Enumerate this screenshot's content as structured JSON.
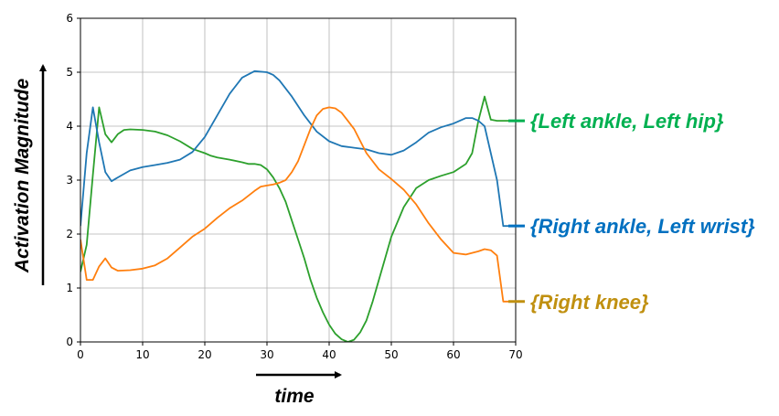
{
  "chart_data": {
    "type": "line",
    "xlabel": "time",
    "ylabel": "Activation Magnitude",
    "xlim": [
      0,
      70
    ],
    "ylim": [
      0,
      6
    ],
    "xticks": [
      0,
      10,
      20,
      30,
      40,
      50,
      60,
      70
    ],
    "yticks": [
      0,
      1,
      2,
      3,
      4,
      5,
      6
    ],
    "grid": true,
    "legend": "right-side labels",
    "series": [
      {
        "name": "{Left ankle, Left hip}",
        "color": "#2ca02c",
        "label_color": "#00b050",
        "x": [
          0,
          1,
          2,
          3,
          4,
          5,
          6,
          7,
          8,
          10,
          12,
          14,
          16,
          18,
          20,
          21,
          22,
          24,
          26,
          27,
          28,
          29,
          30,
          31,
          32,
          33,
          34,
          35,
          36,
          37,
          38,
          39,
          40,
          41,
          42,
          43,
          44,
          45,
          46,
          47,
          48,
          49,
          50,
          52,
          54,
          56,
          58,
          60,
          62,
          63,
          64,
          65,
          66,
          67,
          68,
          69,
          70
        ],
        "y": [
          1.3,
          1.8,
          3.1,
          4.35,
          3.85,
          3.7,
          3.85,
          3.93,
          3.94,
          3.93,
          3.9,
          3.83,
          3.72,
          3.58,
          3.5,
          3.45,
          3.42,
          3.38,
          3.33,
          3.3,
          3.3,
          3.28,
          3.2,
          3.05,
          2.85,
          2.6,
          2.25,
          1.9,
          1.55,
          1.15,
          0.82,
          0.55,
          0.32,
          0.15,
          0.05,
          0.0,
          0.04,
          0.18,
          0.4,
          0.75,
          1.15,
          1.55,
          1.95,
          2.5,
          2.85,
          3.0,
          3.08,
          3.15,
          3.3,
          3.5,
          4.1,
          4.55,
          4.12,
          4.1,
          4.1,
          4.1,
          4.1
        ]
      },
      {
        "name": "{Right ankle, Left wrist}",
        "color": "#1f77b4",
        "label_color": "#0070c0",
        "x": [
          0,
          1,
          2,
          3,
          4,
          5,
          6,
          8,
          10,
          12,
          14,
          16,
          18,
          20,
          22,
          24,
          26,
          28,
          30,
          31,
          32,
          34,
          36,
          38,
          40,
          42,
          44,
          46,
          48,
          50,
          52,
          54,
          56,
          58,
          60,
          62,
          63,
          64,
          65,
          66,
          67,
          68,
          69,
          70
        ],
        "y": [
          2.15,
          3.5,
          4.35,
          3.7,
          3.15,
          2.98,
          3.05,
          3.18,
          3.24,
          3.28,
          3.32,
          3.38,
          3.52,
          3.8,
          4.2,
          4.6,
          4.9,
          5.02,
          5.0,
          4.95,
          4.85,
          4.55,
          4.2,
          3.9,
          3.72,
          3.63,
          3.6,
          3.57,
          3.5,
          3.47,
          3.55,
          3.7,
          3.88,
          3.98,
          4.05,
          4.15,
          4.15,
          4.1,
          4.0,
          3.5,
          3.0,
          2.15,
          2.15,
          2.15
        ]
      },
      {
        "name": "{Right knee}",
        "color": "#ff7f0e",
        "label_color": "#c09010",
        "x": [
          0,
          1,
          2,
          3,
          4,
          5,
          6,
          8,
          10,
          12,
          14,
          16,
          18,
          20,
          22,
          24,
          26,
          28,
          29,
          30,
          31,
          32,
          33,
          34,
          35,
          36,
          37,
          38,
          39,
          40,
          41,
          42,
          43,
          44,
          46,
          48,
          50,
          52,
          54,
          56,
          58,
          60,
          62,
          63,
          64,
          65,
          66,
          67,
          68,
          69,
          70
        ],
        "y": [
          1.9,
          1.15,
          1.15,
          1.4,
          1.55,
          1.38,
          1.32,
          1.33,
          1.36,
          1.42,
          1.55,
          1.75,
          1.95,
          2.1,
          2.3,
          2.48,
          2.62,
          2.8,
          2.88,
          2.9,
          2.92,
          2.95,
          3.0,
          3.15,
          3.35,
          3.65,
          3.95,
          4.2,
          4.32,
          4.35,
          4.33,
          4.25,
          4.1,
          3.95,
          3.5,
          3.2,
          3.02,
          2.82,
          2.55,
          2.2,
          1.9,
          1.65,
          1.62,
          1.65,
          1.68,
          1.72,
          1.7,
          1.6,
          0.75,
          0.75,
          0.75
        ]
      }
    ]
  }
}
